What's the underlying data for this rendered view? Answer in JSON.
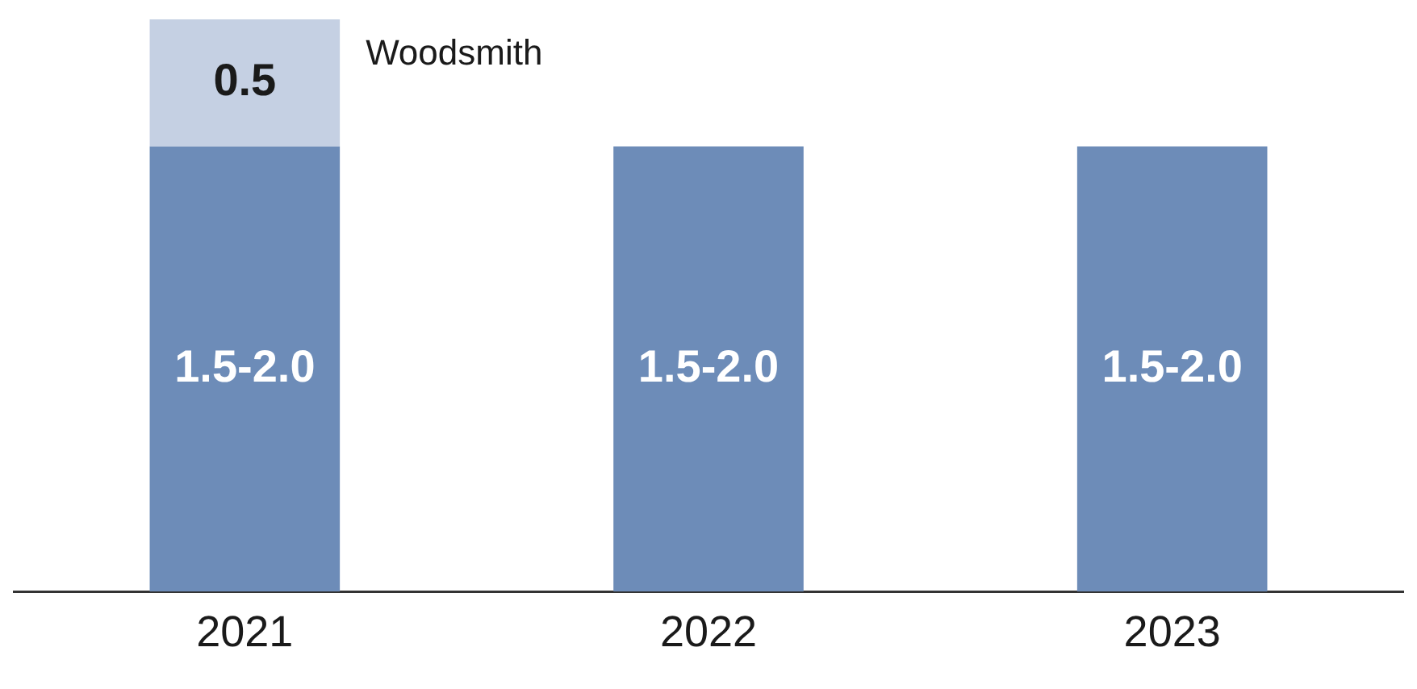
{
  "chart_data": {
    "type": "bar",
    "stacked": true,
    "categories": [
      "2021",
      "2022",
      "2023"
    ],
    "legend": false,
    "grid": false,
    "series": [
      {
        "color": "#6d8cb8",
        "values": [
          1.75,
          1.75,
          1.75
        ],
        "value_labels": [
          "1.5-2.0",
          "1.5-2.0",
          "1.5-2.0"
        ]
      },
      {
        "name": "Woodsmith",
        "color": "#c5d0e3",
        "values": [
          0.5,
          null,
          null
        ],
        "value_labels": [
          "0.5",
          null,
          null
        ]
      }
    ]
  }
}
